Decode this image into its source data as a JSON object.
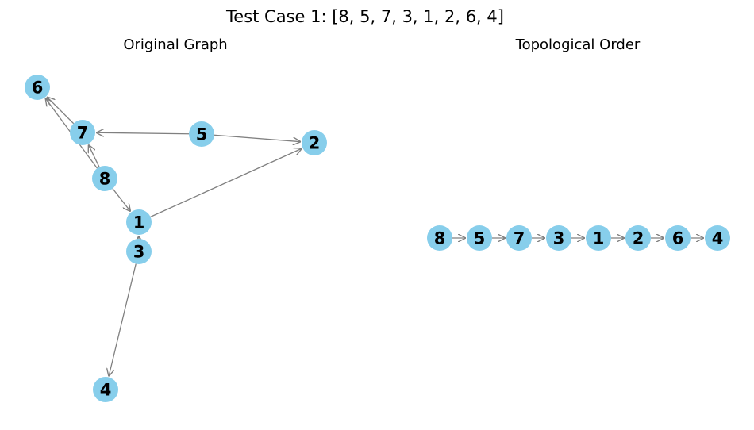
{
  "figure": {
    "suptitle": "Test Case 1: [8, 5, 7, 3, 1, 2, 6, 4]"
  },
  "panels": {
    "left": {
      "title": "Original Graph"
    },
    "right": {
      "title": "Topological Order"
    }
  },
  "colors": {
    "node_fill": "#87ceeb",
    "edge": "#808080",
    "text": "#000000"
  },
  "graph": {
    "nodes": [
      "6",
      "7",
      "5",
      "2",
      "8",
      "1",
      "3",
      "4"
    ],
    "edges": [
      [
        "7",
        "6"
      ],
      [
        "8",
        "6"
      ],
      [
        "5",
        "7"
      ],
      [
        "8",
        "7"
      ],
      [
        "5",
        "2"
      ],
      [
        "1",
        "2"
      ],
      [
        "8",
        "1"
      ],
      [
        "3",
        "1"
      ],
      [
        "3",
        "4"
      ]
    ]
  },
  "topological_order": [
    "8",
    "5",
    "7",
    "3",
    "1",
    "2",
    "6",
    "4"
  ]
}
